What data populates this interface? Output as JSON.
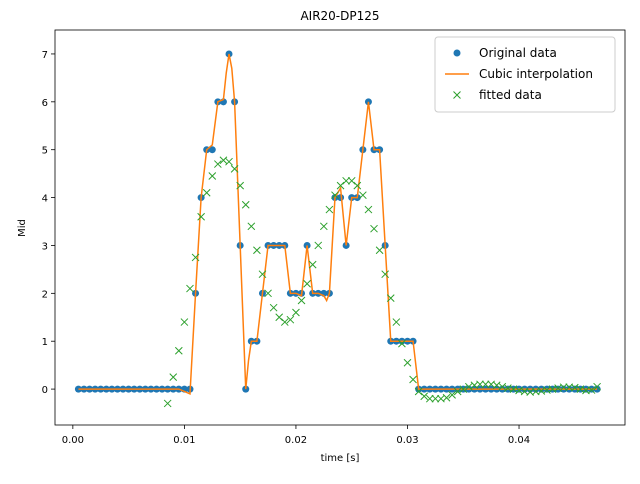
{
  "chart_data": {
    "type": "line",
    "title": "AIR20-DP125",
    "x_label": "time [s]",
    "y_label": "Mid",
    "xlim": [
      -0.0016,
      0.0495
    ],
    "ylim": [
      -0.75,
      7.5
    ],
    "xticks": [
      {
        "value": 0,
        "label": "0.00"
      },
      {
        "value": 0.01,
        "label": "0.01"
      },
      {
        "value": 0.02,
        "label": "0.02"
      },
      {
        "value": 0.03,
        "label": "0.03"
      },
      {
        "value": 0.04,
        "label": "0.04"
      }
    ],
    "yticks": [
      0,
      1,
      2,
      3,
      4,
      5,
      6,
      7
    ],
    "legend": "upper right",
    "series": [
      {
        "name": "Original data",
        "color": "#1f77b4",
        "style": "circle",
        "x": [
          0.0005,
          0.001,
          0.0015,
          0.002,
          0.0025,
          0.003,
          0.0035,
          0.004,
          0.0045,
          0.005,
          0.0055,
          0.006,
          0.0065,
          0.007,
          0.0075,
          0.008,
          0.0085,
          0.009,
          0.0095,
          0.01,
          0.0105,
          0.011,
          0.0115,
          0.012,
          0.0125,
          0.013,
          0.0135,
          0.014,
          0.0145,
          0.015,
          0.0155,
          0.016,
          0.0165,
          0.017,
          0.0175,
          0.018,
          0.0185,
          0.019,
          0.0195,
          0.02,
          0.0205,
          0.021,
          0.0215,
          0.022,
          0.0225,
          0.023,
          0.0235,
          0.024,
          0.0245,
          0.025,
          0.0255,
          0.026,
          0.0265,
          0.027,
          0.0275,
          0.028,
          0.0285,
          0.029,
          0.0295,
          0.03,
          0.0305,
          0.031,
          0.0315,
          0.032,
          0.0325,
          0.033,
          0.0335,
          0.034,
          0.0345,
          0.035,
          0.0355,
          0.036,
          0.0365,
          0.037,
          0.0375,
          0.038,
          0.0385,
          0.039,
          0.0395,
          0.04,
          0.0405,
          0.041,
          0.0415,
          0.042,
          0.0425,
          0.043,
          0.0435,
          0.044,
          0.0445,
          0.045,
          0.0455,
          0.046,
          0.0465,
          0.047
        ],
        "values": [
          0,
          0,
          0,
          0,
          0,
          0,
          0,
          0,
          0,
          0,
          0,
          0,
          0,
          0,
          0,
          0,
          0,
          0,
          0,
          0,
          0,
          2,
          4,
          5,
          5,
          6,
          6,
          7,
          6,
          3,
          0,
          1,
          1,
          2,
          3,
          3,
          3,
          3,
          2,
          2,
          2,
          3,
          2,
          2,
          2,
          2,
          4,
          4,
          3,
          4,
          4,
          5,
          6,
          5,
          5,
          3,
          1,
          1,
          1,
          1,
          1,
          0,
          0,
          0,
          0,
          0,
          0,
          0,
          0,
          0,
          0,
          0,
          0,
          0,
          0,
          0,
          0,
          0,
          0,
          0,
          0,
          0,
          0,
          0,
          0,
          0,
          0,
          0,
          0,
          0,
          0,
          0,
          0,
          0
        ]
      },
      {
        "name": "Cubic interpolation",
        "color": "#ff7f0e",
        "style": "line",
        "x": [
          0.0005,
          0.0095,
          0.01,
          0.0105,
          0.011,
          0.0115,
          0.012,
          0.0125,
          0.013,
          0.0135,
          0.01375,
          0.014,
          0.01425,
          0.0145,
          0.015,
          0.0155,
          0.01575,
          0.016,
          0.0165,
          0.017,
          0.0175,
          0.018,
          0.0185,
          0.019,
          0.0195,
          0.02,
          0.0205,
          0.021,
          0.0215,
          0.022,
          0.0225,
          0.02275,
          0.023,
          0.0235,
          0.024,
          0.0245,
          0.025,
          0.0255,
          0.026,
          0.0265,
          0.027,
          0.0275,
          0.028,
          0.0285,
          0.029,
          0.0295,
          0.03,
          0.0305,
          0.031,
          0.047
        ],
        "values": [
          0,
          0,
          -0.05,
          -0.1,
          2,
          4,
          5,
          5.1,
          6,
          6.05,
          6.6,
          7,
          6.7,
          6,
          3,
          0,
          0.6,
          1,
          1,
          2,
          3,
          3,
          3,
          3,
          2,
          2,
          1.95,
          3,
          2,
          2,
          1.95,
          1.85,
          2,
          4,
          4.2,
          3,
          4,
          4,
          5,
          6,
          5,
          5,
          3,
          1,
          1,
          1,
          1,
          1,
          0,
          0
        ]
      },
      {
        "name": "fitted data",
        "color": "#2ca02c",
        "style": "cross",
        "x": [
          0.0085,
          0.009,
          0.0095,
          0.01,
          0.0105,
          0.011,
          0.0115,
          0.012,
          0.0125,
          0.013,
          0.0135,
          0.014,
          0.0145,
          0.015,
          0.0155,
          0.016,
          0.0165,
          0.017,
          0.0175,
          0.018,
          0.0185,
          0.019,
          0.0195,
          0.02,
          0.0205,
          0.021,
          0.0215,
          0.022,
          0.0225,
          0.023,
          0.0235,
          0.024,
          0.0245,
          0.025,
          0.0255,
          0.026,
          0.0265,
          0.027,
          0.0275,
          0.028,
          0.0285,
          0.029,
          0.0295,
          0.03,
          0.0305,
          0.031,
          0.0315,
          0.032,
          0.0325,
          0.033,
          0.0335,
          0.034,
          0.0345,
          0.035,
          0.0355,
          0.036,
          0.0365,
          0.037,
          0.0375,
          0.038,
          0.0385,
          0.039,
          0.0395,
          0.04,
          0.0405,
          0.041,
          0.0415,
          0.042,
          0.0425,
          0.043,
          0.0435,
          0.044,
          0.0445,
          0.045,
          0.0455,
          0.046,
          0.0465,
          0.047
        ],
        "values": [
          -0.3,
          0.25,
          0.8,
          1.4,
          2.1,
          2.75,
          3.6,
          4.1,
          4.45,
          4.7,
          4.78,
          4.75,
          4.6,
          4.25,
          3.85,
          3.4,
          2.9,
          2.4,
          2.0,
          1.7,
          1.5,
          1.4,
          1.45,
          1.6,
          1.85,
          2.2,
          2.6,
          3.0,
          3.4,
          3.75,
          4.05,
          4.25,
          4.35,
          4.35,
          4.25,
          4.05,
          3.75,
          3.35,
          2.9,
          2.4,
          1.9,
          1.4,
          0.95,
          0.55,
          0.2,
          -0.05,
          -0.15,
          -0.2,
          -0.2,
          -0.2,
          -0.18,
          -0.12,
          -0.05,
          0,
          0.05,
          0.08,
          0.1,
          0.1,
          0.1,
          0.08,
          0.05,
          0.02,
          0,
          -0.03,
          -0.05,
          -0.06,
          -0.05,
          -0.04,
          -0.02,
          0,
          0.02,
          0.04,
          0.04,
          0.03,
          0,
          -0.03,
          -0.02,
          0.05
        ]
      }
    ]
  }
}
